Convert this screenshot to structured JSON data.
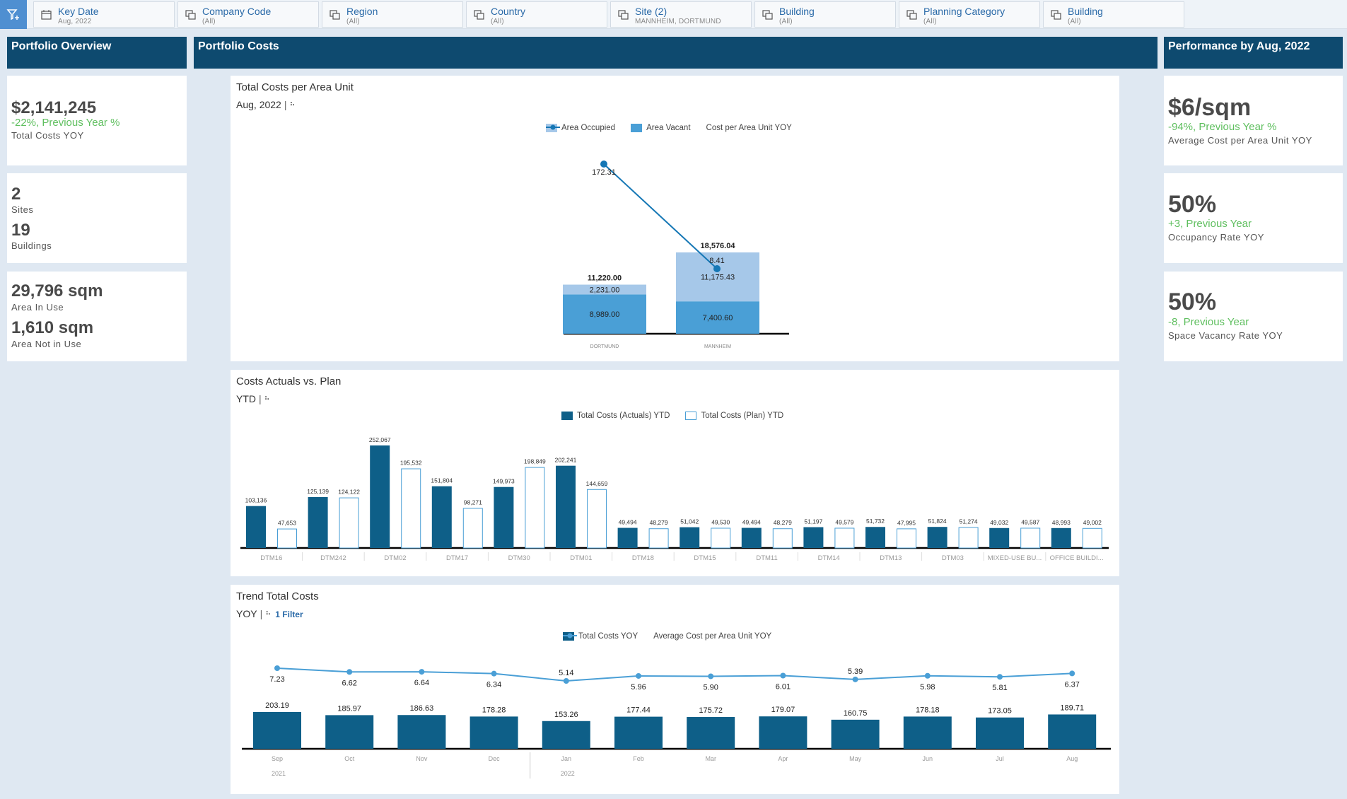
{
  "filters": [
    {
      "label": "Key Date",
      "value": "Aug, 2022",
      "icon": "calendar-icon",
      "name": "filter-key-date"
    },
    {
      "label": "Company Code",
      "value": "(All)",
      "icon": "filter-copy-icon",
      "name": "filter-company-code"
    },
    {
      "label": "Region",
      "value": "(All)",
      "icon": "filter-copy-icon",
      "name": "filter-region"
    },
    {
      "label": "Country",
      "value": "(All)",
      "icon": "filter-copy-icon",
      "name": "filter-country"
    },
    {
      "label": "Site (2)",
      "value": "MANNHEIM, DORTMUND",
      "icon": "filter-copy-icon",
      "name": "filter-site"
    },
    {
      "label": "Building",
      "value": "(All)",
      "icon": "filter-copy-icon",
      "name": "filter-building"
    },
    {
      "label": "Planning Category",
      "value": "(All)",
      "icon": "filter-copy-icon",
      "name": "filter-planning-category"
    },
    {
      "label": "Building",
      "value": "(All)",
      "icon": "filter-copy-icon",
      "name": "filter-building-2"
    }
  ],
  "sections": {
    "overview": "Portfolio Overview",
    "costs": "Portfolio Costs",
    "performance": "Performance by Aug, 2022"
  },
  "overview": {
    "total_costs": {
      "value": "$2,141,245",
      "change": "-22%, Previous Year %",
      "label": "Total Costs YOY"
    },
    "sites": {
      "value": "2",
      "label": "Sites"
    },
    "buildings": {
      "value": "19",
      "label": "Buildings"
    },
    "area_in_use": {
      "value": "29,796 sqm",
      "label": "Area In Use"
    },
    "area_not_in_use": {
      "value": "1,610 sqm",
      "label": "Area Not in Use"
    }
  },
  "performance": {
    "avg_cost": {
      "value": "$6/sqm",
      "change": "-94%, Previous Year %",
      "label": "Average Cost per Area Unit YOY"
    },
    "occupancy": {
      "value": "50%",
      "change": "+3, Previous Year",
      "label": "Occupancy Rate YOY"
    },
    "vacancy": {
      "value": "50%",
      "change": "-8, Previous Year",
      "label": "Space Vacancy Rate YOY"
    }
  },
  "panels": {
    "area": {
      "title": "Total Costs per Area Unit",
      "sub": "Aug, 2022"
    },
    "plan": {
      "title": "Costs Actuals vs. Plan",
      "sub": "YTD"
    },
    "trend": {
      "title": "Trend Total Costs",
      "sub": "YOY",
      "filter_link": "1 Filter"
    }
  },
  "colors": {
    "header": "#0e4a6f",
    "dark_bar": "#0e5f88",
    "mid_bar": "#4a9fd6",
    "light_bar": "#a6c8e9",
    "line": "#1577b5",
    "trend_line": "#4a9fd6",
    "positive": "#5fbf5f",
    "link": "#2a6aa8"
  },
  "chart_data": [
    {
      "type": "bar",
      "title": "Total Costs per Area Unit",
      "stacked": true,
      "categories": [
        "DORTMUND",
        "MANNHEIM"
      ],
      "series": [
        {
          "name": "Area Occupied",
          "values": [
            2231.0,
            11175.43
          ],
          "labels": [
            "2,231.00",
            "11,175.43"
          ],
          "color": "#a6c8e9"
        },
        {
          "name": "Area Vacant",
          "values": [
            8989.0,
            7400.6
          ],
          "labels": [
            "8,989.00",
            "7,400.60"
          ],
          "color": "#4a9fd6"
        }
      ],
      "totals": [
        "11,220.00",
        "18,576.04"
      ],
      "line": {
        "name": "Cost per Area Unit YOY",
        "values": [
          172.31,
          8.41
        ],
        "labels": [
          "172.31",
          "8.41"
        ],
        "color": "#1577b5"
      },
      "legend": "top"
    },
    {
      "type": "bar",
      "title": "Costs Actuals vs. Plan",
      "categories": [
        "DTM16",
        "DTM242",
        "DTM02",
        "DTM17",
        "DTM30",
        "DTM01",
        "DTM18",
        "DTM15",
        "DTM11",
        "DTM14",
        "DTM13",
        "DTM03",
        "MIXED-USE BU...",
        "OFFICE BUILDI..."
      ],
      "series": [
        {
          "name": "Total Costs (Actuals) YTD",
          "values": [
            103136,
            125139,
            252067,
            151804,
            149973,
            202241,
            49494,
            51042,
            49494,
            51197,
            51732,
            51824,
            49032,
            48993
          ],
          "labels": [
            "103,136",
            "125,139",
            "252,067",
            "151,804",
            "149,973",
            "202,241",
            "49,494",
            "51,042",
            "49,494",
            "51,197",
            "51,732",
            "51,824",
            "49,032",
            "48,993"
          ]
        },
        {
          "name": "Total Costs (Plan) YTD",
          "values": [
            47653,
            124122,
            195532,
            98271,
            198849,
            144659,
            48279,
            49530,
            48279,
            49579,
            47995,
            51274,
            49587,
            49002
          ],
          "labels": [
            "47,653",
            "124,122",
            "195,532",
            "98,271",
            "198,849",
            "144,659",
            "48,279",
            "49,530",
            "48,279",
            "49,579",
            "47,995",
            "51,274",
            "49,587",
            "49,002"
          ]
        }
      ],
      "legend": "top"
    },
    {
      "type": "bar",
      "title": "Trend Total Costs",
      "categories": [
        "Sep",
        "Oct",
        "Nov",
        "Dec",
        "Jan",
        "Feb",
        "Mar",
        "Apr",
        "May",
        "Jun",
        "Jul",
        "Aug"
      ],
      "years": [
        {
          "label": "2021",
          "index": 0
        },
        {
          "label": "2022",
          "index": 4
        }
      ],
      "series": [
        {
          "name": "Total Costs YOY",
          "values": [
            203.19,
            185.97,
            186.63,
            178.28,
            153.26,
            177.44,
            175.72,
            179.07,
            160.75,
            178.18,
            173.05,
            189.71
          ],
          "labels": [
            "203.19",
            "185.97",
            "186.63",
            "178.28",
            "153.26",
            "177.44",
            "175.72",
            "179.07",
            "160.75",
            "178.18",
            "173.05",
            "189.71"
          ]
        }
      ],
      "line": {
        "name": "Average Cost per Area Unit YOY",
        "values": [
          7.23,
          6.62,
          6.64,
          6.34,
          5.14,
          5.96,
          5.9,
          6.01,
          5.39,
          5.98,
          5.81,
          6.37
        ],
        "labels": [
          "7.23",
          "6.62",
          "6.64",
          "6.34",
          "5.14",
          "5.96",
          "5.90",
          "6.01",
          "5.39",
          "5.98",
          "5.81",
          "6.37"
        ]
      },
      "legend": "top"
    }
  ]
}
